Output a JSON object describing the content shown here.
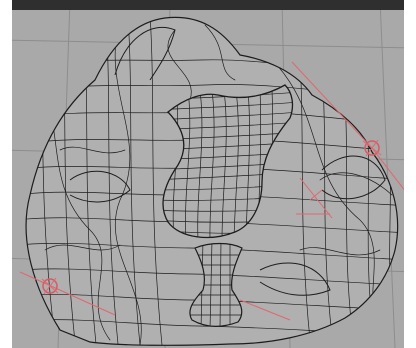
{
  "viewport": {
    "background": "#a9a9a9",
    "grid_color": "#8d8d8d",
    "frame_color": "#ffffff",
    "top_band_color": "#2f2f2f"
  },
  "mesh": {
    "wire_color": "#1c1c1c",
    "fill_color": "#b0b0b0",
    "shading_color": "#9e9e9e"
  },
  "guides": {
    "line_color": "#e0676e",
    "handle_color": "#d85a64"
  }
}
